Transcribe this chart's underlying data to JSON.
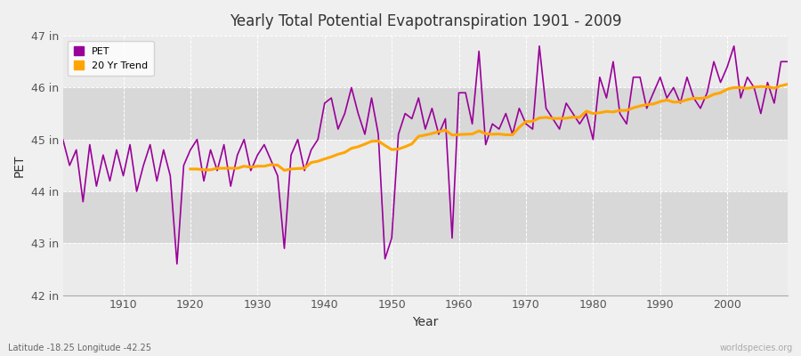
{
  "title": "Yearly Total Potential Evapotranspiration 1901 - 2009",
  "xlabel": "Year",
  "ylabel": "PET",
  "lat_lon_label": "Latitude -18.25 Longitude -42.25",
  "watermark": "worldspecies.org",
  "pet_color": "#990099",
  "trend_color": "#FFA500",
  "bg_color": "#f0f0f0",
  "plot_bg_color": "#e8e8e8",
  "band_color_light": "#ebebeb",
  "band_color_dark": "#d8d8d8",
  "ylim": [
    42,
    47
  ],
  "yticks": [
    42,
    43,
    44,
    45,
    46,
    47
  ],
  "ytick_labels": [
    "42 in",
    "43 in",
    "44 in",
    "45 in",
    "46 in",
    "47 in"
  ],
  "years": [
    1901,
    1902,
    1903,
    1904,
    1905,
    1906,
    1907,
    1908,
    1909,
    1910,
    1911,
    1912,
    1913,
    1914,
    1915,
    1916,
    1917,
    1918,
    1919,
    1920,
    1921,
    1922,
    1923,
    1924,
    1925,
    1926,
    1927,
    1928,
    1929,
    1930,
    1931,
    1932,
    1933,
    1934,
    1935,
    1936,
    1937,
    1938,
    1939,
    1940,
    1941,
    1942,
    1943,
    1944,
    1945,
    1946,
    1947,
    1948,
    1949,
    1950,
    1951,
    1952,
    1953,
    1954,
    1955,
    1956,
    1957,
    1958,
    1959,
    1960,
    1961,
    1962,
    1963,
    1964,
    1965,
    1966,
    1967,
    1968,
    1969,
    1970,
    1971,
    1972,
    1973,
    1974,
    1975,
    1976,
    1977,
    1978,
    1979,
    1980,
    1981,
    1982,
    1983,
    1984,
    1985,
    1986,
    1987,
    1988,
    1989,
    1990,
    1991,
    1992,
    1993,
    1994,
    1995,
    1996,
    1997,
    1998,
    1999,
    2000,
    2001,
    2002,
    2003,
    2004,
    2005,
    2006,
    2007,
    2008,
    2009
  ],
  "pet": [
    45.0,
    44.5,
    44.8,
    43.8,
    44.9,
    44.1,
    44.7,
    44.2,
    44.8,
    44.3,
    44.9,
    44.0,
    44.5,
    44.9,
    44.2,
    44.8,
    44.3,
    42.6,
    44.5,
    44.8,
    45.0,
    44.2,
    44.8,
    44.4,
    44.9,
    44.1,
    44.7,
    45.0,
    44.4,
    44.7,
    44.9,
    44.6,
    44.3,
    42.9,
    44.7,
    45.0,
    44.4,
    44.8,
    45.0,
    45.7,
    45.8,
    45.2,
    45.5,
    46.0,
    45.5,
    45.1,
    45.8,
    45.1,
    42.7,
    43.1,
    45.1,
    45.5,
    45.4,
    45.8,
    45.2,
    45.6,
    45.1,
    45.4,
    43.1,
    45.9,
    45.9,
    45.3,
    46.7,
    44.9,
    45.3,
    45.2,
    45.5,
    45.1,
    45.6,
    45.3,
    45.2,
    46.8,
    45.6,
    45.4,
    45.2,
    45.7,
    45.5,
    45.3,
    45.5,
    45.0,
    46.2,
    45.8,
    46.5,
    45.5,
    45.3,
    46.2,
    46.2,
    45.6,
    45.9,
    46.2,
    45.8,
    46.0,
    45.7,
    46.2,
    45.8,
    45.6,
    45.9,
    46.5,
    46.1,
    46.4,
    46.8,
    45.8,
    46.2,
    46.0,
    45.5,
    46.1,
    45.7,
    46.5,
    46.5
  ],
  "xticks": [
    1910,
    1920,
    1930,
    1940,
    1950,
    1960,
    1970,
    1980,
    1990,
    2000
  ],
  "xlim": [
    1901,
    2009
  ]
}
